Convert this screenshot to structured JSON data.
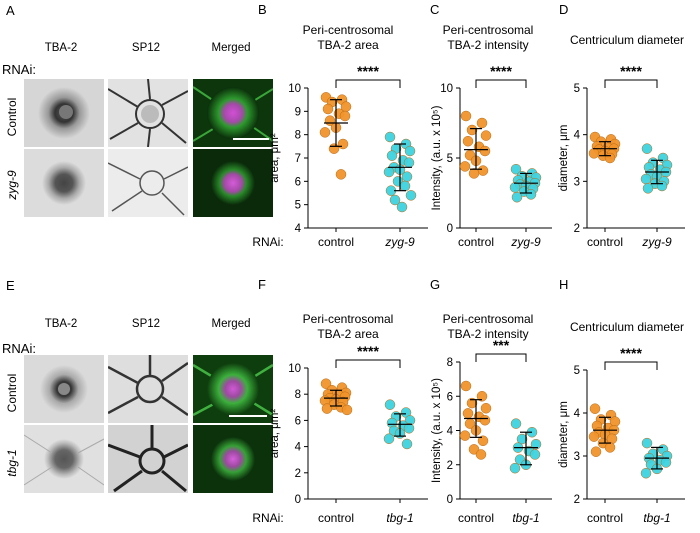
{
  "colors": {
    "orange": "#F0932B",
    "cyan": "#3ED3E0",
    "axis": "#000000"
  },
  "section_top": {
    "panel_letter": "A",
    "rnai_label": "RNAi:",
    "columns": [
      "TBA-2",
      "SP12",
      "Merged"
    ],
    "rows": [
      "Control",
      "zyg-9"
    ]
  },
  "section_bottom": {
    "panel_letter": "E",
    "rnai_label": "RNAi:",
    "columns": [
      "TBA-2",
      "SP12",
      "Merged"
    ],
    "rows": [
      "Control",
      "tbg-1"
    ]
  },
  "chart_data": [
    {
      "id": "B",
      "type": "scatter",
      "title": [
        "Peri-centrosomal",
        "TBA-2 area"
      ],
      "ylabel": "area, μm²",
      "ylim": [
        4,
        10
      ],
      "yticks": [
        "4",
        "5",
        "6",
        "7",
        "8",
        "9",
        "10"
      ],
      "xlabel_prefix": "RNAi:",
      "categories": [
        "control",
        "zyg-9"
      ],
      "significance": "****",
      "series": [
        {
          "name": "control",
          "color": "#F0932B",
          "mean": 8.5,
          "sd_low": 7.5,
          "sd_high": 9.5,
          "values": [
            9.6,
            9.5,
            9.4,
            9.2,
            9.1,
            8.9,
            8.8,
            8.6,
            8.3,
            8.1,
            7.6,
            7.4,
            6.3
          ]
        },
        {
          "name": "zyg-9",
          "color": "#3ED3E0",
          "mean": 6.6,
          "sd_low": 5.6,
          "sd_high": 7.6,
          "values": [
            7.9,
            7.6,
            7.4,
            7.3,
            7.1,
            6.9,
            6.8,
            6.6,
            6.5,
            6.4,
            6.2,
            6.0,
            5.8,
            5.6,
            5.4,
            5.2,
            4.9
          ]
        }
      ]
    },
    {
      "id": "C",
      "type": "scatter",
      "title": [
        "Peri-centrosomal",
        "TBA-2 intensity"
      ],
      "ylabel": "Intensity, (a.u. x 10⁵)",
      "ylim": [
        0,
        10
      ],
      "yticks": [
        "0",
        "5",
        "10"
      ],
      "categories": [
        "control",
        "zyg-9"
      ],
      "significance": "****",
      "series": [
        {
          "name": "control",
          "color": "#F0932B",
          "mean": 5.6,
          "sd_low": 4.2,
          "sd_high": 7.1,
          "values": [
            8.0,
            7.5,
            7.0,
            6.6,
            6.2,
            5.8,
            5.5,
            5.2,
            4.8,
            4.4,
            4.1,
            3.9
          ]
        },
        {
          "name": "zyg-9",
          "color": "#3ED3E0",
          "mean": 3.2,
          "sd_low": 2.5,
          "sd_high": 3.9,
          "values": [
            4.2,
            3.9,
            3.7,
            3.6,
            3.4,
            3.3,
            3.2,
            3.1,
            3.0,
            2.9,
            2.8,
            2.6,
            2.4,
            2.2
          ]
        }
      ]
    },
    {
      "id": "D",
      "type": "scatter",
      "title": [
        "Centriculum diameter"
      ],
      "ylabel": "diameter, μm",
      "ylim": [
        2,
        5
      ],
      "yticks": [
        "2",
        "3",
        "4",
        "5"
      ],
      "categories": [
        "control",
        "zyg-9"
      ],
      "significance": "****",
      "series": [
        {
          "name": "control",
          "color": "#F0932B",
          "mean": 3.7,
          "sd_low": 3.55,
          "sd_high": 3.85,
          "values": [
            3.95,
            3.9,
            3.85,
            3.8,
            3.75,
            3.72,
            3.7,
            3.68,
            3.65,
            3.6,
            3.58,
            3.55,
            3.5
          ]
        },
        {
          "name": "zyg-9",
          "color": "#3ED3E0",
          "mean": 3.2,
          "sd_low": 2.95,
          "sd_high": 3.45,
          "values": [
            3.7,
            3.5,
            3.4,
            3.35,
            3.3,
            3.25,
            3.2,
            3.15,
            3.1,
            3.05,
            3.0,
            2.95,
            2.9,
            2.85
          ]
        }
      ]
    },
    {
      "id": "F",
      "type": "scatter",
      "title": [
        "Peri-centrosomal",
        "TBA-2 area"
      ],
      "ylabel": "area, μm²",
      "ylim": [
        0,
        10
      ],
      "yticks": [
        "0",
        "2",
        "4",
        "6",
        "8",
        "10"
      ],
      "xlabel_prefix": "RNAi:",
      "categories": [
        "control",
        "tbg-1"
      ],
      "significance": "****",
      "series": [
        {
          "name": "control",
          "color": "#F0932B",
          "mean": 7.7,
          "sd_low": 7.1,
          "sd_high": 8.3,
          "values": [
            8.8,
            8.5,
            8.3,
            8.1,
            8.0,
            7.9,
            7.8,
            7.7,
            7.6,
            7.5,
            7.4,
            7.2,
            7.0,
            6.9,
            6.8
          ]
        },
        {
          "name": "tbg-1",
          "color": "#3ED3E0",
          "mean": 5.7,
          "sd_low": 4.8,
          "sd_high": 6.5,
          "values": [
            7.2,
            6.6,
            6.3,
            6.0,
            5.8,
            5.6,
            5.4,
            5.2,
            5.0,
            4.6,
            4.2
          ]
        }
      ]
    },
    {
      "id": "G",
      "type": "scatter",
      "title": [
        "Peri-centrosomal",
        "TBA-2 intensity"
      ],
      "ylabel": "Intensity, (a.u. x 10⁵)",
      "ylim": [
        0,
        8
      ],
      "yticks": [
        "0",
        "2",
        "4",
        "6",
        "8"
      ],
      "categories": [
        "control",
        "tbg-1"
      ],
      "significance": "***",
      "series": [
        {
          "name": "control",
          "color": "#F0932B",
          "mean": 4.7,
          "sd_low": 3.6,
          "sd_high": 5.8,
          "values": [
            6.6,
            6.0,
            5.6,
            5.3,
            5.0,
            4.8,
            4.6,
            4.4,
            4.0,
            3.7,
            3.4,
            2.9,
            2.6
          ]
        },
        {
          "name": "tbg-1",
          "color": "#3ED3E0",
          "mean": 3.0,
          "sd_low": 2.0,
          "sd_high": 3.9,
          "values": [
            4.4,
            3.9,
            3.5,
            3.2,
            3.0,
            2.8,
            2.6,
            2.3,
            2.0,
            1.8
          ]
        }
      ]
    },
    {
      "id": "H",
      "type": "scatter",
      "title": [
        "Centriculum diameter"
      ],
      "ylabel": "diameter, μm",
      "ylim": [
        2,
        5
      ],
      "yticks": [
        "2",
        "3",
        "4",
        "5"
      ],
      "categories": [
        "control",
        "tbg-1"
      ],
      "significance": "****",
      "series": [
        {
          "name": "control",
          "color": "#F0932B",
          "mean": 3.6,
          "sd_low": 3.3,
          "sd_high": 3.9,
          "values": [
            4.1,
            3.95,
            3.85,
            3.8,
            3.7,
            3.65,
            3.6,
            3.55,
            3.5,
            3.45,
            3.4,
            3.3,
            3.2,
            3.1
          ]
        },
        {
          "name": "tbg-1",
          "color": "#3ED3E0",
          "mean": 2.95,
          "sd_low": 2.7,
          "sd_high": 3.2,
          "values": [
            3.3,
            3.15,
            3.05,
            3.0,
            2.95,
            2.9,
            2.85,
            2.8,
            2.7,
            2.6
          ]
        }
      ]
    }
  ]
}
